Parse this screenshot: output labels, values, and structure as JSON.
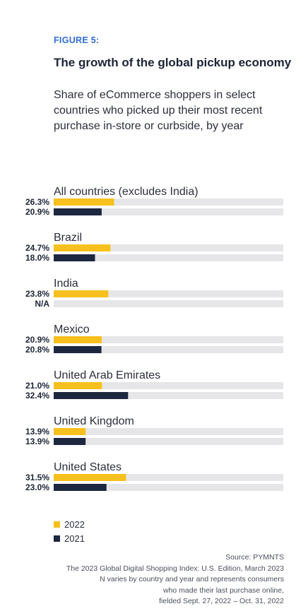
{
  "figure_label": "FIGURE 5:",
  "chart_data": {
    "type": "bar",
    "orientation": "horizontal",
    "title": "The growth of the global pickup economy",
    "subtitle": "Share of eCommerce shoppers in select countries who picked up their most recent purchase in-store or curbside, by year",
    "categories": [
      "All countries (excludes India)",
      "Brazil",
      "India",
      "Mexico",
      "United Arab Emirates",
      "United Kingdom",
      "United States"
    ],
    "series": [
      {
        "name": "2022",
        "color": "#f7c01c",
        "values": [
          26.3,
          24.7,
          23.8,
          20.9,
          21.0,
          13.9,
          31.5
        ],
        "labels": [
          "26.3%",
          "24.7%",
          "23.8%",
          "20.9%",
          "21.0%",
          "13.9%",
          "31.5%"
        ]
      },
      {
        "name": "2021",
        "color": "#1e2740",
        "values": [
          20.9,
          18.0,
          null,
          20.8,
          32.4,
          13.9,
          23.0
        ],
        "labels": [
          "20.9%",
          "18.0%",
          "N/A",
          "20.8%",
          "32.4%",
          "13.9%",
          "23.0%"
        ]
      }
    ],
    "xlim": [
      0,
      100
    ],
    "track_color": "#e6e6e8",
    "legend_position": "bottom-left"
  },
  "legend": [
    {
      "label": "2022",
      "color": "#f7c01c"
    },
    {
      "label": "2021",
      "color": "#1e2740"
    }
  ],
  "source_lines": [
    "Source: PYMNTS",
    "The 2023 Global Digital Shopping Index: U.S. Edition, March 2023",
    "N varies by country and year and represents consumers",
    "who made their last purchase online,",
    "fielded Sept. 27, 2022 – Oct. 31, 2022"
  ]
}
